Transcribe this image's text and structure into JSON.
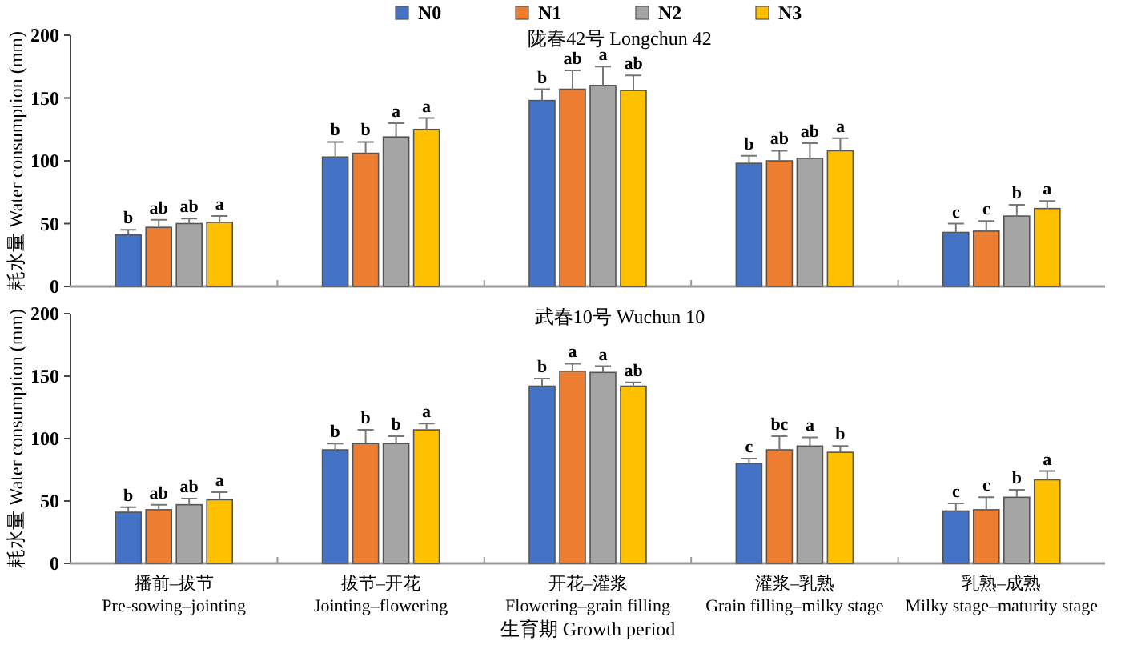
{
  "chart_data": [
    {
      "type": "bar",
      "title": "陇春42号 Longchun 42",
      "ylabel": "耗水量 Water consumption (mm)",
      "categories": [
        null,
        null,
        null,
        null,
        null
      ],
      "ylim": [
        0,
        200
      ],
      "yticks": [
        0,
        50,
        100,
        150,
        200
      ],
      "legend": "top",
      "tick_labels": "y",
      "series": [
        {
          "name": "N0",
          "color": "#4472c4",
          "values": [
            41,
            103,
            148,
            98,
            43
          ],
          "errors": [
            4,
            12,
            9,
            6,
            7
          ],
          "value_labels": [
            "b",
            "b",
            "b",
            "b",
            "c"
          ]
        },
        {
          "name": "N1",
          "color": "#ed7d31",
          "values": [
            47,
            106,
            157,
            100,
            44
          ],
          "errors": [
            6,
            9,
            15,
            8,
            8
          ],
          "value_labels": [
            "ab",
            "b",
            "ab",
            "ab",
            "c"
          ]
        },
        {
          "name": "N2",
          "color": "#a5a5a5",
          "values": [
            50,
            119,
            160,
            102,
            56
          ],
          "errors": [
            4,
            11,
            15,
            12,
            9
          ],
          "value_labels": [
            "ab",
            "a",
            "a",
            "ab",
            "b"
          ]
        },
        {
          "name": "N3",
          "color": "#ffc000",
          "values": [
            51,
            125,
            156,
            108,
            62
          ],
          "errors": [
            5,
            9,
            12,
            10,
            6
          ],
          "value_labels": [
            "a",
            "a",
            "ab",
            "a",
            "a"
          ]
        }
      ]
    },
    {
      "type": "bar",
      "title": "武春10号 Wuchun 10",
      "ylabel": "耗水量 Water consumption (mm)",
      "xlabel": "生育期 Growth period",
      "categories": [
        "播前–拔节\nPre-sowing–jointing",
        "拔节–开花\nJointing–flowering",
        "开花–灌浆\nFlowering–grain filling",
        "灌浆–乳熟\nGrain filling–milky stage",
        "乳熟–成熟\nMilky stage–maturity stage"
      ],
      "ylim": [
        0,
        200
      ],
      "yticks": [
        0,
        50,
        100,
        150,
        200
      ],
      "series": [
        {
          "color": "#4472c4",
          "values": [
            41,
            91,
            142,
            80,
            42
          ],
          "errors": [
            4,
            5,
            6,
            4,
            6
          ],
          "value_labels": [
            "b",
            "b",
            "b",
            "c",
            "c"
          ]
        },
        {
          "color": "#ed7d31",
          "values": [
            43,
            96,
            154,
            91,
            43
          ],
          "errors": [
            4,
            11,
            6,
            11,
            10
          ],
          "value_labels": [
            "ab",
            "b",
            "a",
            "bc",
            "c"
          ]
        },
        {
          "color": "#a5a5a5",
          "values": [
            47,
            96,
            153,
            94,
            53
          ],
          "errors": [
            5,
            6,
            5,
            7,
            6
          ],
          "value_labels": [
            "ab",
            "b",
            "a",
            "a",
            "b"
          ]
        },
        {
          "color": "#ffc000",
          "values": [
            51,
            107,
            142,
            89,
            67
          ],
          "errors": [
            6,
            5,
            3,
            5,
            7
          ],
          "value_labels": [
            "a",
            "a",
            "ab",
            "b",
            "a"
          ]
        }
      ]
    }
  ]
}
